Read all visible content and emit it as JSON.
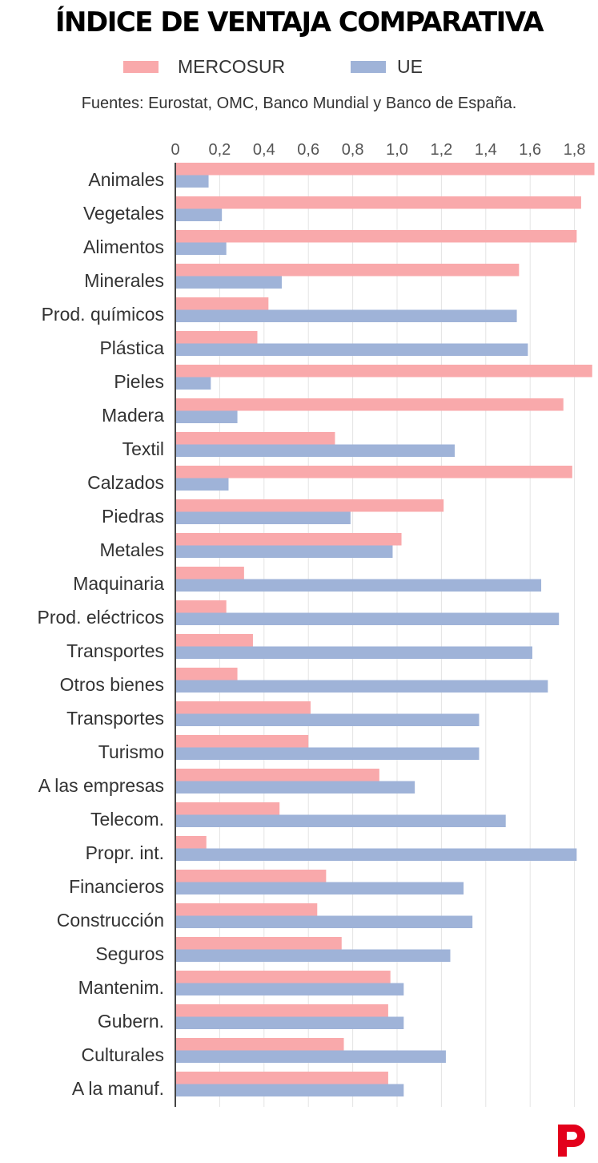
{
  "header": {
    "title": "ÍNDICE DE VENTAJA COMPARATIVA",
    "source": "Fuentes: Eurostat, OMC, Banco Mundial y Banco de España."
  },
  "colors": {
    "mercosur": "#f9a9ab",
    "ue": "#9fb3d8",
    "axis": "#444444",
    "grid": "#e4e4e4",
    "logo": "#e3001b"
  },
  "chart_data": {
    "type": "bar",
    "orientation": "horizontal",
    "title": "ÍNDICE DE VENTAJA COMPARATIVA",
    "xlim": [
      0,
      1.9
    ],
    "ticks": [
      "0",
      "0,2",
      "0,4",
      "0,6",
      "0,8",
      "1,0",
      "1,2",
      "1,4",
      "1,6",
      "1,8"
    ],
    "tick_values": [
      0,
      0.2,
      0.4,
      0.6,
      0.8,
      1.0,
      1.2,
      1.4,
      1.6,
      1.8
    ],
    "grid": true,
    "legend_position": "top",
    "categories": [
      "Animales",
      "Vegetales",
      "Alimentos",
      "Minerales",
      "Prod. químicos",
      "Plástica",
      "Pieles",
      "Madera",
      "Textil",
      "Calzados",
      "Piedras",
      "Metales",
      "Maquinaria",
      "Prod. eléctricos",
      "Transportes",
      "Otros bienes",
      "Transportes",
      "Turismo",
      "A las empresas",
      "Telecom.",
      "Propr. int.",
      "Financieros",
      "Construcción",
      "Seguros",
      "Mantenim.",
      "Gubern.",
      "Culturales",
      "A la manuf."
    ],
    "series": [
      {
        "name": "MERCOSUR",
        "color": "#f9a9ab",
        "values": [
          1.89,
          1.83,
          1.81,
          1.55,
          0.42,
          0.37,
          1.88,
          1.75,
          0.72,
          1.79,
          1.21,
          1.02,
          0.31,
          0.23,
          0.35,
          0.28,
          0.61,
          0.6,
          0.92,
          0.47,
          0.14,
          0.68,
          0.64,
          0.75,
          0.97,
          0.96,
          0.76,
          0.96
        ]
      },
      {
        "name": "UE",
        "color": "#9fb3d8",
        "values": [
          0.15,
          0.21,
          0.23,
          0.48,
          1.54,
          1.59,
          0.16,
          0.28,
          1.26,
          0.24,
          0.79,
          0.98,
          1.65,
          1.73,
          1.61,
          1.68,
          1.37,
          1.37,
          1.08,
          1.49,
          1.81,
          1.3,
          1.34,
          1.24,
          1.03,
          1.03,
          1.22,
          1.03
        ]
      }
    ]
  }
}
